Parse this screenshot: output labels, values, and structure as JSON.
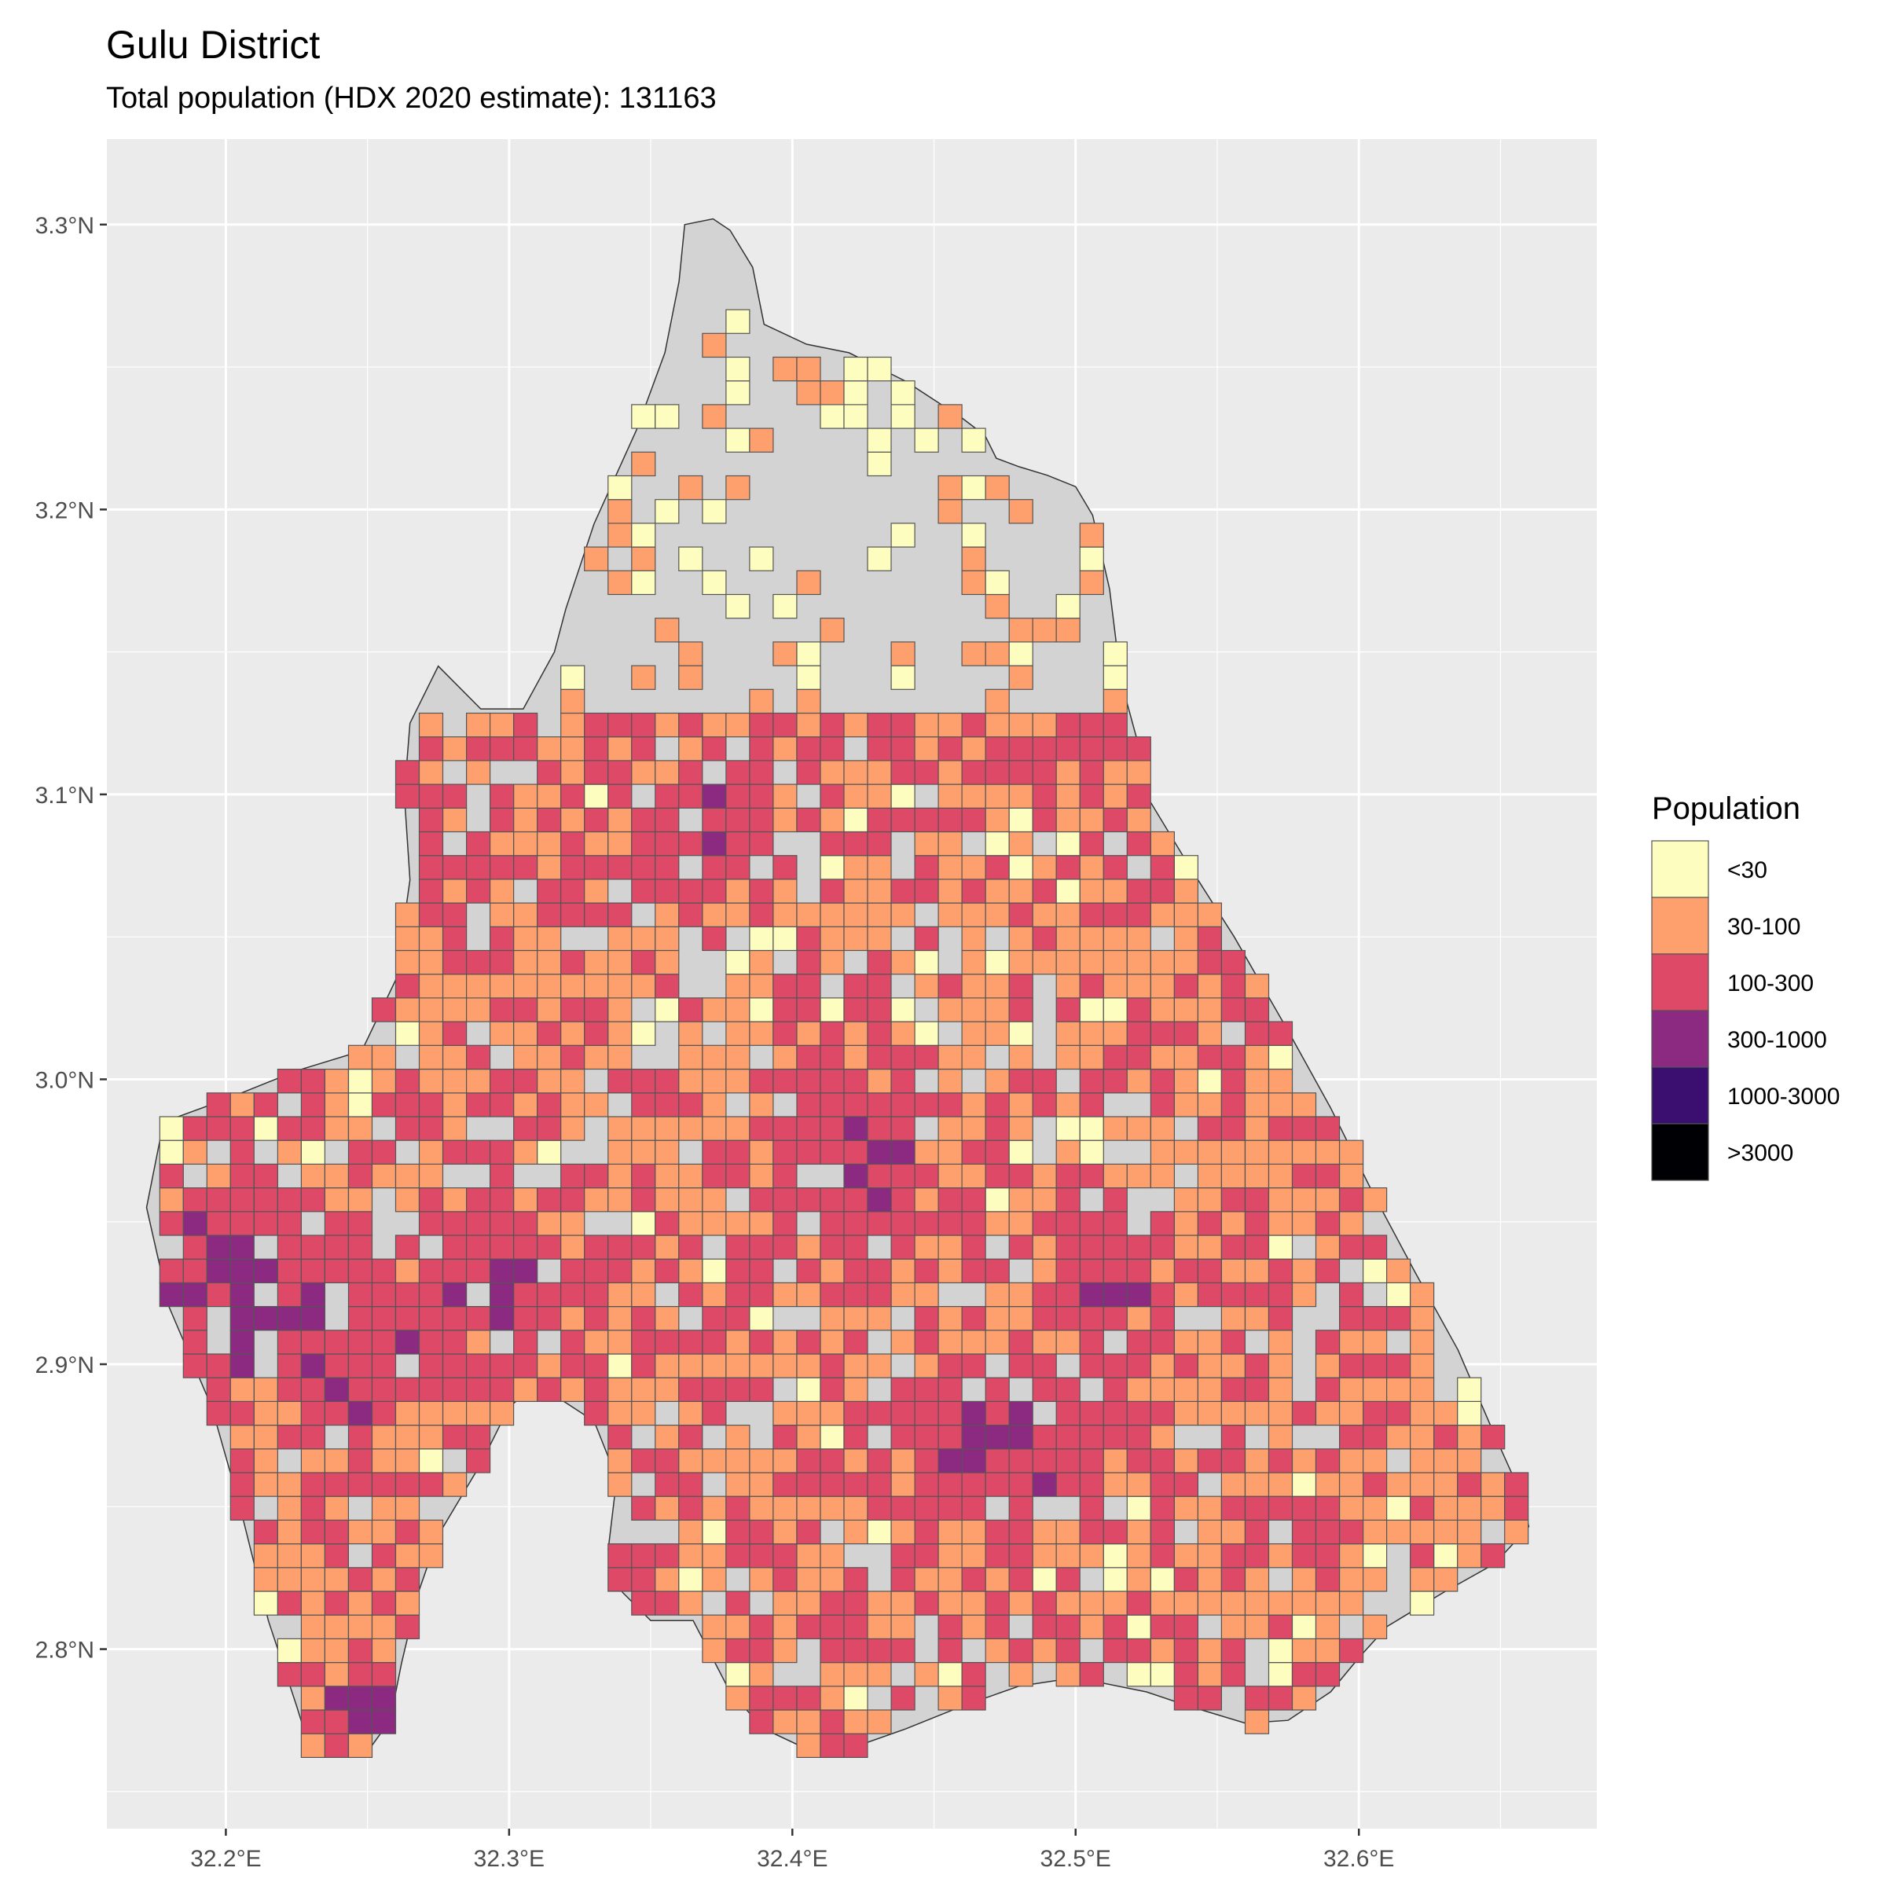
{
  "header": {
    "title": "Gulu District",
    "subtitle": "Total population (HDX 2020 estimate): 131163"
  },
  "map": {
    "x_ticks": [
      {
        "value": 32.2,
        "label": "32.2°E"
      },
      {
        "value": 32.3,
        "label": "32.3°E"
      },
      {
        "value": 32.4,
        "label": "32.4°E"
      },
      {
        "value": 32.5,
        "label": "32.5°E"
      },
      {
        "value": 32.6,
        "label": "32.6°E"
      }
    ],
    "y_ticks": [
      {
        "value": 2.8,
        "label": "2.8°N"
      },
      {
        "value": 2.9,
        "label": "2.9°N"
      },
      {
        "value": 3.0,
        "label": "3.0°N"
      },
      {
        "value": 3.1,
        "label": "3.1°N"
      },
      {
        "value": 3.2,
        "label": "3.2°N"
      },
      {
        "value": 3.3,
        "label": "3.3°N"
      }
    ],
    "xlim": [
      32.158,
      32.684
    ],
    "ylim": [
      2.737,
      3.33
    ],
    "cell_size_deg": 0.00833,
    "panel_color": "#ebebeb",
    "grid_color": "#ffffff",
    "district_fill": "#d3d3d3",
    "district_outline": [
      [
        32.362,
        3.3
      ],
      [
        32.372,
        3.302
      ],
      [
        32.378,
        3.298
      ],
      [
        32.386,
        3.285
      ],
      [
        32.39,
        3.265
      ],
      [
        32.405,
        3.258
      ],
      [
        32.42,
        3.255
      ],
      [
        32.44,
        3.245
      ],
      [
        32.46,
        3.232
      ],
      [
        32.468,
        3.226
      ],
      [
        32.472,
        3.218
      ],
      [
        32.48,
        3.215
      ],
      [
        32.49,
        3.212
      ],
      [
        32.5,
        3.208
      ],
      [
        32.506,
        3.198
      ],
      [
        32.512,
        3.172
      ],
      [
        32.516,
        3.14
      ],
      [
        32.522,
        3.118
      ],
      [
        32.526,
        3.098
      ],
      [
        32.54,
        3.075
      ],
      [
        32.556,
        3.05
      ],
      [
        32.575,
        3.017
      ],
      [
        32.59,
        2.99
      ],
      [
        32.605,
        2.96
      ],
      [
        32.62,
        2.932
      ],
      [
        32.635,
        2.905
      ],
      [
        32.648,
        2.875
      ],
      [
        32.657,
        2.855
      ],
      [
        32.66,
        2.843
      ],
      [
        32.648,
        2.83
      ],
      [
        32.63,
        2.82
      ],
      [
        32.61,
        2.808
      ],
      [
        32.6,
        2.797
      ],
      [
        32.59,
        2.785
      ],
      [
        32.575,
        2.775
      ],
      [
        32.56,
        2.774
      ],
      [
        32.54,
        2.78
      ],
      [
        32.525,
        2.785
      ],
      [
        32.5,
        2.79
      ],
      [
        32.48,
        2.787
      ],
      [
        32.46,
        2.78
      ],
      [
        32.44,
        2.772
      ],
      [
        32.42,
        2.765
      ],
      [
        32.405,
        2.765
      ],
      [
        32.39,
        2.772
      ],
      [
        32.378,
        2.785
      ],
      [
        32.365,
        2.81
      ],
      [
        32.35,
        2.81
      ],
      [
        32.34,
        2.82
      ],
      [
        32.335,
        2.835
      ],
      [
        32.338,
        2.86
      ],
      [
        32.33,
        2.88
      ],
      [
        32.31,
        2.893
      ],
      [
        32.3,
        2.885
      ],
      [
        32.29,
        2.865
      ],
      [
        32.275,
        2.84
      ],
      [
        32.268,
        2.82
      ],
      [
        32.262,
        2.795
      ],
      [
        32.258,
        2.775
      ],
      [
        32.25,
        2.764
      ],
      [
        32.23,
        2.764
      ],
      [
        32.225,
        2.78
      ],
      [
        32.215,
        2.81
      ],
      [
        32.205,
        2.85
      ],
      [
        32.195,
        2.885
      ],
      [
        32.18,
        2.92
      ],
      [
        32.172,
        2.955
      ],
      [
        32.178,
        2.985
      ],
      [
        32.2,
        2.993
      ],
      [
        32.225,
        3.003
      ],
      [
        32.248,
        3.01
      ],
      [
        32.26,
        3.035
      ],
      [
        32.265,
        3.07
      ],
      [
        32.263,
        3.1
      ],
      [
        32.265,
        3.125
      ],
      [
        32.275,
        3.145
      ],
      [
        32.29,
        3.13
      ],
      [
        32.305,
        3.13
      ],
      [
        32.316,
        3.15
      ],
      [
        32.32,
        3.165
      ],
      [
        32.33,
        3.195
      ],
      [
        32.345,
        3.228
      ],
      [
        32.355,
        3.255
      ],
      [
        32.36,
        3.28
      ]
    ]
  },
  "legend": {
    "title": "Population",
    "classes": [
      {
        "label": "<30",
        "color": "#fcfdbf"
      },
      {
        "label": "30-100",
        "color": "#fea06d"
      },
      {
        "label": "100-300",
        "color": "#de4968"
      },
      {
        "label": "300-1000",
        "color": "#8c2981"
      },
      {
        "label": "1000-3000",
        "color": "#3b0f70"
      },
      {
        "label": ">3000",
        "color": "#000004"
      }
    ]
  }
}
